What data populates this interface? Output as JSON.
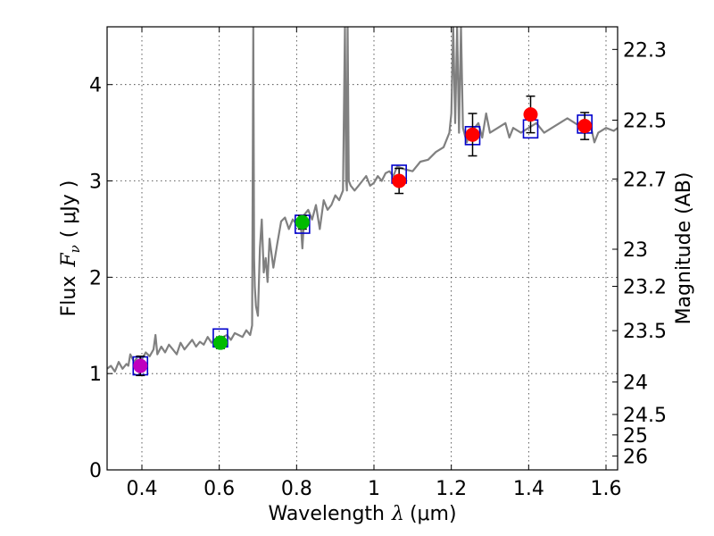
{
  "chart_data": {
    "type": "scatter",
    "title": "",
    "xlabel_prefix": "Wavelength",
    "xlabel_symbol": "λ",
    "xlabel_units": "(μm)",
    "ylabel_prefix": "Flux",
    "ylabel_symbol": "F",
    "ylabel_subscript": "ν",
    "ylabel_units": "( μJy )",
    "y2label": "Magnitude (AB)",
    "xlim": [
      0.31,
      1.63
    ],
    "ylim": [
      0,
      4.6
    ],
    "grid": true,
    "x_ticks": [
      0.4,
      0.6,
      0.8,
      1.0,
      1.2,
      1.4,
      1.6
    ],
    "x_tick_labels": [
      "0.4",
      "0.6",
      "0.8",
      "1",
      "1.2",
      "1.4",
      "1.6"
    ],
    "y_ticks": [
      0,
      1,
      2,
      3,
      4
    ],
    "y_tick_labels": [
      "0",
      "1",
      "2",
      "3",
      "4"
    ],
    "mag_ticks": [
      22.3,
      22.5,
      22.7,
      23,
      23.2,
      23.5,
      24,
      24.5,
      25,
      26
    ],
    "mag_tick_labels": [
      "22.3",
      "22.5",
      "22.7",
      "23",
      "23.2",
      "23.5",
      "24",
      "24.5",
      "25",
      "26"
    ],
    "colors": {
      "spectrum": "#808080",
      "model_box": "#0000cc",
      "errorbar": "#000000",
      "purple": "#bf00bf",
      "green": "#00bb00",
      "red": "#ff0000"
    },
    "spectrum": {
      "name": "template spectrum",
      "x": [
        0.31,
        0.32,
        0.33,
        0.34,
        0.35,
        0.36,
        0.365,
        0.37,
        0.38,
        0.39,
        0.4,
        0.41,
        0.42,
        0.43,
        0.435,
        0.44,
        0.45,
        0.46,
        0.47,
        0.48,
        0.49,
        0.5,
        0.51,
        0.52,
        0.53,
        0.54,
        0.55,
        0.56,
        0.57,
        0.58,
        0.59,
        0.6,
        0.61,
        0.62,
        0.63,
        0.64,
        0.65,
        0.66,
        0.67,
        0.68,
        0.685,
        0.688,
        0.69,
        0.692,
        0.695,
        0.7,
        0.705,
        0.71,
        0.715,
        0.72,
        0.725,
        0.73,
        0.74,
        0.75,
        0.76,
        0.77,
        0.78,
        0.79,
        0.8,
        0.81,
        0.815,
        0.82,
        0.83,
        0.84,
        0.85,
        0.86,
        0.87,
        0.88,
        0.89,
        0.9,
        0.91,
        0.92,
        0.925,
        0.928,
        0.93,
        0.932,
        0.935,
        0.94,
        0.95,
        0.96,
        0.97,
        0.98,
        0.99,
        1.0,
        1.01,
        1.02,
        1.03,
        1.04,
        1.05,
        1.06,
        1.08,
        1.1,
        1.12,
        1.14,
        1.16,
        1.18,
        1.195,
        1.2,
        1.205,
        1.21,
        1.215,
        1.22,
        1.225,
        1.23,
        1.24,
        1.25,
        1.26,
        1.27,
        1.28,
        1.29,
        1.3,
        1.32,
        1.34,
        1.35,
        1.36,
        1.38,
        1.4,
        1.42,
        1.44,
        1.46,
        1.48,
        1.5,
        1.52,
        1.54,
        1.56,
        1.57,
        1.58,
        1.6,
        1.62,
        1.63
      ],
      "y": [
        1.05,
        1.08,
        1.02,
        1.12,
        1.05,
        1.1,
        1.08,
        1.2,
        1.12,
        1.18,
        1.15,
        1.22,
        1.18,
        1.25,
        1.4,
        1.2,
        1.28,
        1.22,
        1.3,
        1.25,
        1.2,
        1.32,
        1.25,
        1.3,
        1.35,
        1.28,
        1.33,
        1.3,
        1.38,
        1.32,
        1.36,
        1.34,
        1.38,
        1.4,
        1.35,
        1.42,
        1.4,
        1.38,
        1.45,
        1.4,
        1.5,
        4.6,
        2.2,
        1.9,
        1.7,
        1.6,
        2.3,
        2.6,
        2.05,
        2.2,
        1.95,
        2.4,
        2.1,
        2.35,
        2.58,
        2.62,
        2.5,
        2.6,
        2.55,
        2.6,
        2.3,
        2.65,
        2.7,
        2.6,
        2.75,
        2.5,
        2.8,
        2.7,
        2.75,
        2.85,
        2.8,
        2.9,
        4.6,
        3.0,
        2.9,
        4.6,
        3.0,
        2.95,
        2.9,
        2.95,
        3.0,
        3.05,
        2.95,
        2.98,
        3.05,
        3.0,
        3.08,
        3.1,
        3.05,
        3.15,
        3.12,
        3.1,
        3.2,
        3.22,
        3.3,
        3.35,
        3.5,
        3.7,
        4.6,
        3.6,
        4.6,
        3.5,
        4.6,
        3.55,
        3.4,
        3.52,
        3.55,
        3.6,
        3.45,
        3.7,
        3.5,
        3.55,
        3.6,
        3.45,
        3.55,
        3.5,
        3.55,
        3.6,
        3.5,
        3.55,
        3.6,
        3.65,
        3.6,
        3.55,
        3.58,
        3.4,
        3.5,
        3.55,
        3.52,
        3.55
      ]
    },
    "series": [
      {
        "name": "purple point",
        "color": "#bf00bf",
        "x": [
          0.396
        ],
        "y": [
          1.08
        ],
        "yerr": [
          0.1
        ]
      },
      {
        "name": "green points",
        "color": "#00bb00",
        "x": [
          0.603,
          0.815
        ],
        "y": [
          1.32,
          2.57
        ],
        "yerr": [
          0.06,
          0.07
        ]
      },
      {
        "name": "red points",
        "color": "#ff0000",
        "x": [
          1.065,
          1.255,
          1.405,
          1.545
        ],
        "y": [
          3.0,
          3.48,
          3.69,
          3.57
        ],
        "yerr": [
          0.13,
          0.22,
          0.19,
          0.14
        ]
      },
      {
        "name": "model boxes",
        "marker": "square",
        "color": "#0000cc",
        "x": [
          0.396,
          0.603,
          0.815,
          1.065,
          1.255,
          1.405,
          1.545
        ],
        "y": [
          1.08,
          1.37,
          2.55,
          3.07,
          3.47,
          3.54,
          3.59
        ]
      }
    ]
  }
}
